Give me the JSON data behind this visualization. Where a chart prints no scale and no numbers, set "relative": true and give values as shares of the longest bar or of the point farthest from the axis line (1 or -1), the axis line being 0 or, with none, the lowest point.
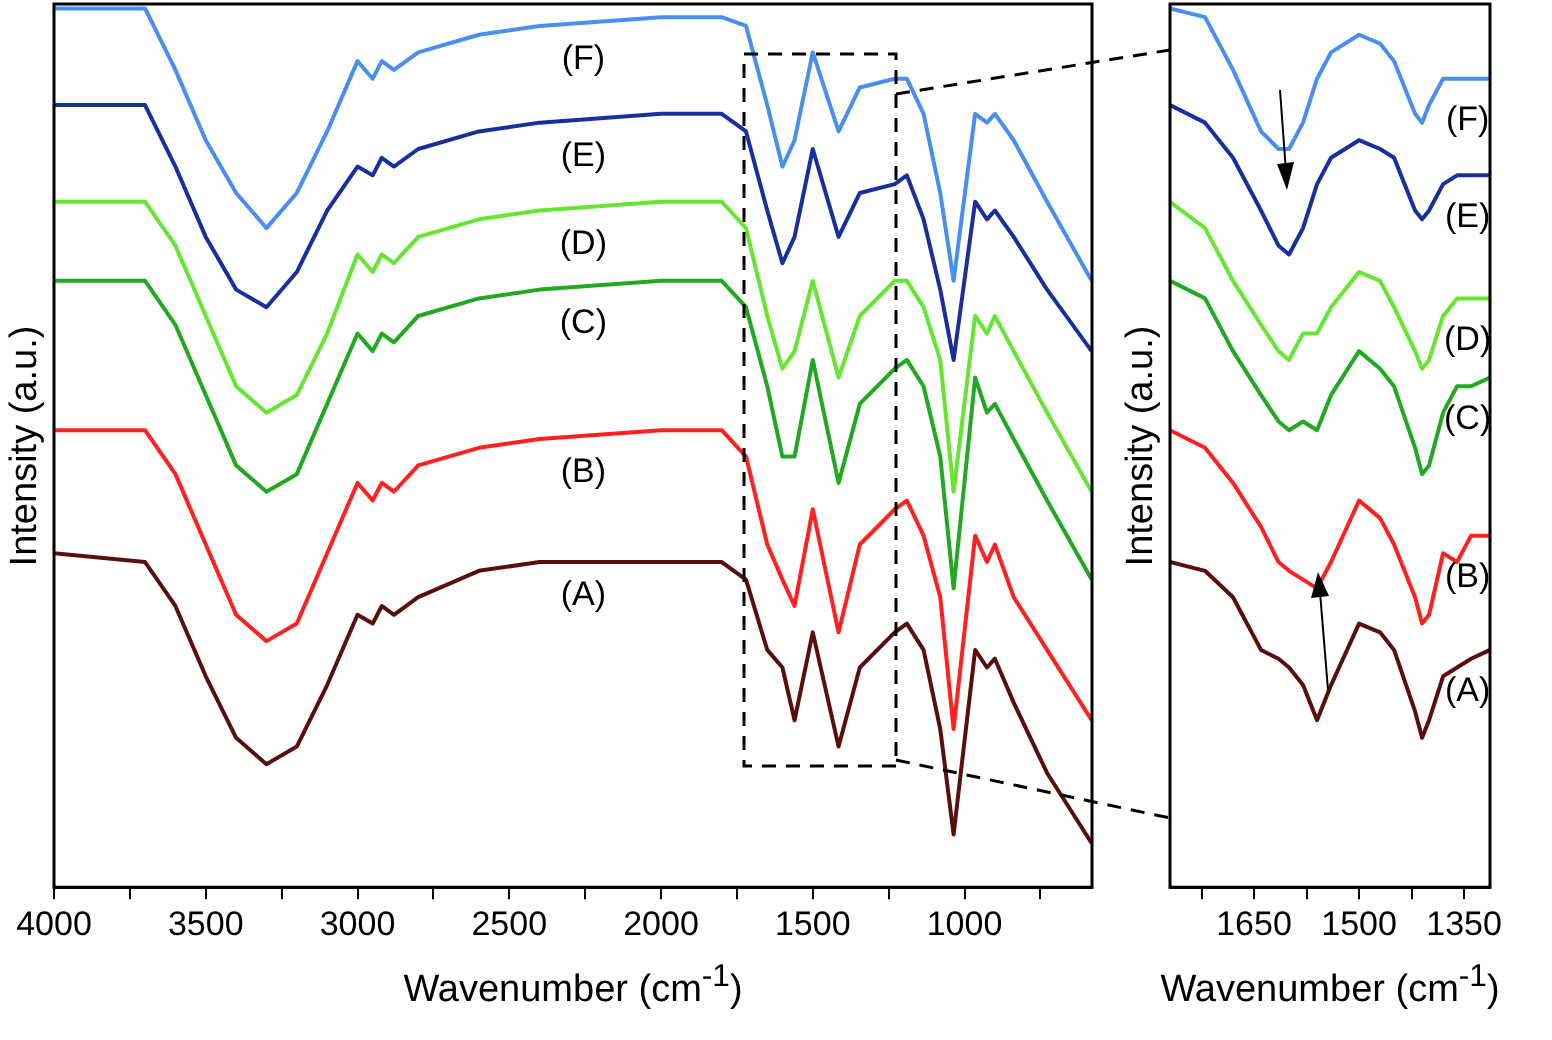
{
  "chart_data": [
    {
      "type": "line",
      "xlabel": "Wavenumber (cm$^{-1}$)",
      "ylabel": "Intensity (a.u.)",
      "relative": true,
      "grid": false,
      "legend": false,
      "xlim": [
        4000,
        580
      ],
      "xticks": [
        4000,
        {
          "value": 3750,
          "label": null
        },
        3500,
        {
          "value": 3250,
          "label": null
        },
        3000,
        {
          "value": 2750,
          "label": null
        },
        2500,
        {
          "value": 2250,
          "label": null
        },
        2000,
        {
          "value": 1750,
          "label": null
        },
        1500,
        {
          "value": 1250,
          "label": null
        },
        1000,
        {
          "value": 750,
          "label": null
        }
      ],
      "x": [
        4000,
        3700,
        3600,
        3500,
        3400,
        3300,
        3200,
        3100,
        3000,
        2950,
        2920,
        2880,
        2800,
        2600,
        2400,
        2000,
        1800,
        1720,
        1650,
        1600,
        1560,
        1500,
        1415,
        1345,
        1230,
        1190,
        1135,
        1080,
        1036,
        965,
        926,
        900,
        838,
        728,
        581
      ],
      "series": [
        {
          "name": "(A)",
          "color": "#5a0f0f",
          "values": [
            0.38,
            0.37,
            0.32,
            0.24,
            0.17,
            0.14,
            0.16,
            0.23,
            0.31,
            0.3,
            0.32,
            0.31,
            0.33,
            0.36,
            0.37,
            0.37,
            0.37,
            0.35,
            0.27,
            0.25,
            0.19,
            0.29,
            0.16,
            0.25,
            0.29,
            0.3,
            0.27,
            0.18,
            0.06,
            0.27,
            0.25,
            0.26,
            0.21,
            0.13,
            0.05
          ]
        },
        {
          "name": "(B)",
          "color": "#ff2020",
          "values": [
            0.52,
            0.52,
            0.47,
            0.39,
            0.31,
            0.28,
            0.3,
            0.38,
            0.46,
            0.44,
            0.46,
            0.45,
            0.48,
            0.5,
            0.51,
            0.52,
            0.52,
            0.49,
            0.39,
            0.35,
            0.32,
            0.43,
            0.29,
            0.39,
            0.43,
            0.44,
            0.4,
            0.33,
            0.18,
            0.4,
            0.37,
            0.39,
            0.33,
            0.27,
            0.19
          ]
        },
        {
          "name": "(C)",
          "color": "#22a822",
          "values": [
            0.69,
            0.69,
            0.64,
            0.56,
            0.48,
            0.45,
            0.47,
            0.55,
            0.63,
            0.61,
            0.63,
            0.62,
            0.65,
            0.67,
            0.68,
            0.69,
            0.69,
            0.66,
            0.57,
            0.49,
            0.49,
            0.6,
            0.46,
            0.55,
            0.59,
            0.6,
            0.57,
            0.49,
            0.34,
            0.58,
            0.54,
            0.55,
            0.51,
            0.44,
            0.35
          ]
        },
        {
          "name": "(D)",
          "color": "#66e633",
          "values": [
            0.78,
            0.78,
            0.73,
            0.65,
            0.57,
            0.54,
            0.56,
            0.63,
            0.72,
            0.7,
            0.72,
            0.71,
            0.74,
            0.76,
            0.77,
            0.78,
            0.78,
            0.75,
            0.65,
            0.59,
            0.61,
            0.69,
            0.58,
            0.65,
            0.69,
            0.69,
            0.66,
            0.6,
            0.45,
            0.65,
            0.63,
            0.65,
            0.61,
            0.54,
            0.45
          ]
        },
        {
          "name": "(E)",
          "color": "#1a2f9e",
          "values": [
            0.89,
            0.89,
            0.82,
            0.74,
            0.68,
            0.66,
            0.7,
            0.77,
            0.82,
            0.81,
            0.83,
            0.82,
            0.84,
            0.86,
            0.87,
            0.88,
            0.88,
            0.86,
            0.77,
            0.71,
            0.74,
            0.84,
            0.74,
            0.79,
            0.8,
            0.81,
            0.76,
            0.68,
            0.6,
            0.78,
            0.76,
            0.77,
            0.74,
            0.68,
            0.61
          ]
        },
        {
          "name": "(F)",
          "color": "#4a8ef0",
          "values": [
            1.0,
            1.0,
            0.93,
            0.85,
            0.79,
            0.75,
            0.79,
            0.86,
            0.94,
            0.92,
            0.94,
            0.93,
            0.95,
            0.97,
            0.98,
            0.99,
            0.99,
            0.98,
            0.89,
            0.82,
            0.85,
            0.95,
            0.86,
            0.91,
            0.92,
            0.92,
            0.88,
            0.79,
            0.69,
            0.88,
            0.87,
            0.88,
            0.85,
            0.78,
            0.69
          ]
        }
      ]
    },
    {
      "type": "line",
      "xlabel": "Wavenumber (cm$^{-1}$)",
      "ylabel": "Intensity (a.u.)",
      "relative": true,
      "grid": false,
      "legend": false,
      "xlim": [
        1770,
        1313
      ],
      "xticks": [
        {
          "value": 1725,
          "label": null
        },
        1650,
        {
          "value": 1575,
          "label": null
        },
        1500,
        {
          "value": 1425,
          "label": null
        },
        1350
      ],
      "x": [
        1770,
        1720,
        1680,
        1640,
        1615,
        1600,
        1580,
        1560,
        1540,
        1500,
        1470,
        1450,
        1420,
        1410,
        1400,
        1380,
        1360,
        1340,
        1313
      ],
      "series": [
        {
          "name": "(A)",
          "color": "#5a0f0f",
          "values": [
            0.37,
            0.36,
            0.33,
            0.27,
            0.26,
            0.25,
            0.23,
            0.19,
            0.23,
            0.3,
            0.29,
            0.27,
            0.2,
            0.17,
            0.19,
            0.24,
            0.25,
            0.26,
            0.27
          ]
        },
        {
          "name": "(B)",
          "color": "#ff2020",
          "values": [
            0.52,
            0.5,
            0.46,
            0.41,
            0.37,
            0.36,
            0.35,
            0.34,
            0.37,
            0.44,
            0.42,
            0.39,
            0.33,
            0.3,
            0.31,
            0.38,
            0.37,
            0.4,
            0.4
          ]
        },
        {
          "name": "(C)",
          "color": "#22a822",
          "values": [
            0.69,
            0.67,
            0.61,
            0.56,
            0.53,
            0.52,
            0.53,
            0.52,
            0.56,
            0.61,
            0.59,
            0.57,
            0.5,
            0.47,
            0.48,
            0.54,
            0.57,
            0.57,
            0.58
          ]
        },
        {
          "name": "(D)",
          "color": "#66e633",
          "values": [
            0.78,
            0.75,
            0.69,
            0.64,
            0.61,
            0.6,
            0.63,
            0.63,
            0.66,
            0.7,
            0.69,
            0.66,
            0.61,
            0.59,
            0.6,
            0.65,
            0.67,
            0.67,
            0.67
          ]
        },
        {
          "name": "(E)",
          "color": "#1a2f9e",
          "values": [
            0.89,
            0.87,
            0.83,
            0.77,
            0.73,
            0.72,
            0.75,
            0.8,
            0.83,
            0.85,
            0.84,
            0.83,
            0.77,
            0.76,
            0.77,
            0.8,
            0.81,
            0.81,
            0.81
          ]
        },
        {
          "name": "(F)",
          "color": "#4a8ef0",
          "values": [
            1.0,
            0.99,
            0.93,
            0.86,
            0.84,
            0.84,
            0.87,
            0.92,
            0.95,
            0.97,
            0.96,
            0.94,
            0.88,
            0.87,
            0.89,
            0.92,
            0.92,
            0.92,
            0.92
          ]
        }
      ]
    }
  ]
}
